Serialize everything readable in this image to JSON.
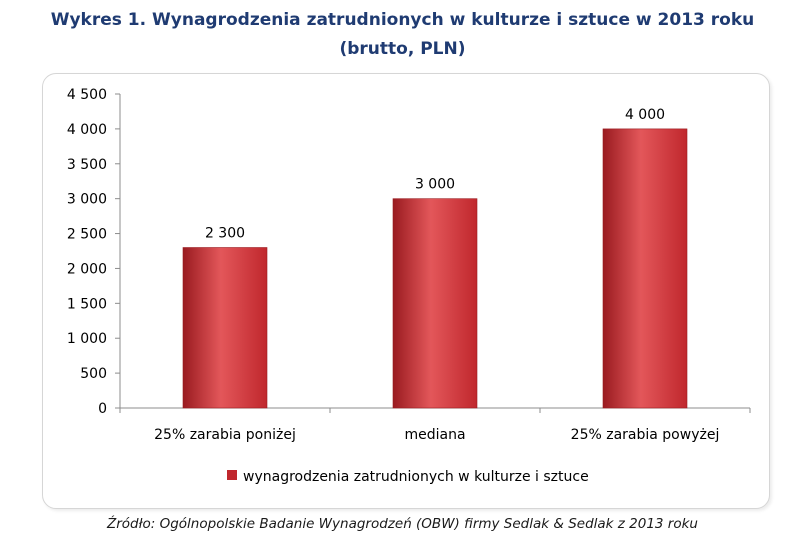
{
  "title_line1": "Wykres 1. Wynagrodzenia zatrudnionych w kulturze i sztuce w 2013 roku",
  "title_line2": "(brutto, PLN)",
  "source": "Źródło: Ogólnopolskie Badanie Wynagrodzeń (OBW) firmy Sedlak & Sedlak z 2013 roku",
  "colors": {
    "bar": "#c0272d",
    "bar_light": "#e3575a",
    "bar_dark": "#9a1b20",
    "title": "#1f3b72"
  },
  "chart_data": {
    "type": "bar",
    "categories": [
      "25% zarabia poniżej",
      "mediana",
      "25% zarabia powyżej"
    ],
    "series": [
      {
        "name": "wynagrodzenia zatrudnionych w kulturze i sztuce",
        "values": [
          2300,
          3000,
          4000
        ]
      }
    ],
    "data_labels": [
      "2 300",
      "3 000",
      "4 000"
    ],
    "ylim": [
      0,
      4500
    ],
    "yticks": [
      0,
      500,
      1000,
      1500,
      2000,
      2500,
      3000,
      3500,
      4000,
      4500
    ],
    "ytick_labels": [
      "0",
      "500",
      "1 000",
      "1 500",
      "2 000",
      "2 500",
      "3 000",
      "3 500",
      "4 000",
      "4 500"
    ],
    "grid": false,
    "legend": "bottom"
  }
}
